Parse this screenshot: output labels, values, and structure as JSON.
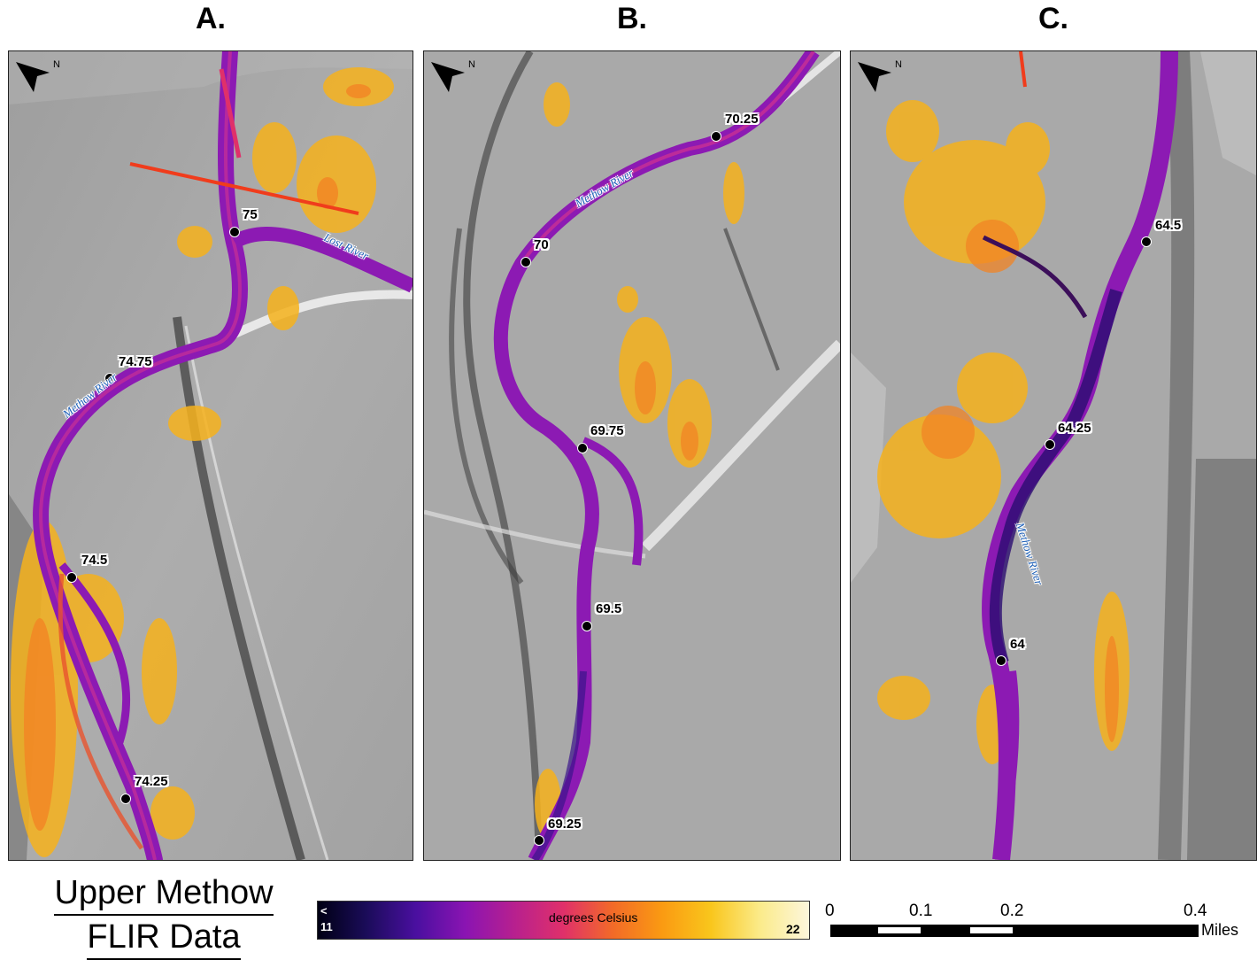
{
  "panels": [
    {
      "title": "A.",
      "river_labels": [
        "Methow River",
        "Lost River"
      ],
      "river_miles": [
        "75",
        "74.75",
        "74.5",
        "74.25"
      ]
    },
    {
      "title": "B.",
      "river_labels": [
        "Methow River"
      ],
      "river_miles": [
        "70.25",
        "70",
        "69.75",
        "69.5",
        "69.25"
      ]
    },
    {
      "title": "C.",
      "river_labels": [
        "Methow River"
      ],
      "river_miles": [
        "64.5",
        "64.25",
        "64"
      ]
    }
  ],
  "north_arrow_label": "N",
  "map_title": {
    "line1": "Upper Methow",
    "line2": "FLIR Data"
  },
  "legend": {
    "low_prefix": "<",
    "low": "11",
    "high": "22",
    "label": "degrees Celsius",
    "colors": [
      "#000014",
      "#1b0c5a",
      "#4a0fa0",
      "#8a14b2",
      "#b7208f",
      "#e0306a",
      "#f26a28",
      "#fa9a12",
      "#f9c61c",
      "#fbeb8a",
      "#fcf6dc"
    ]
  },
  "scale_bar": {
    "ticks": [
      "0",
      "0.1",
      "0.2",
      "0.4"
    ],
    "unit": "Miles"
  }
}
